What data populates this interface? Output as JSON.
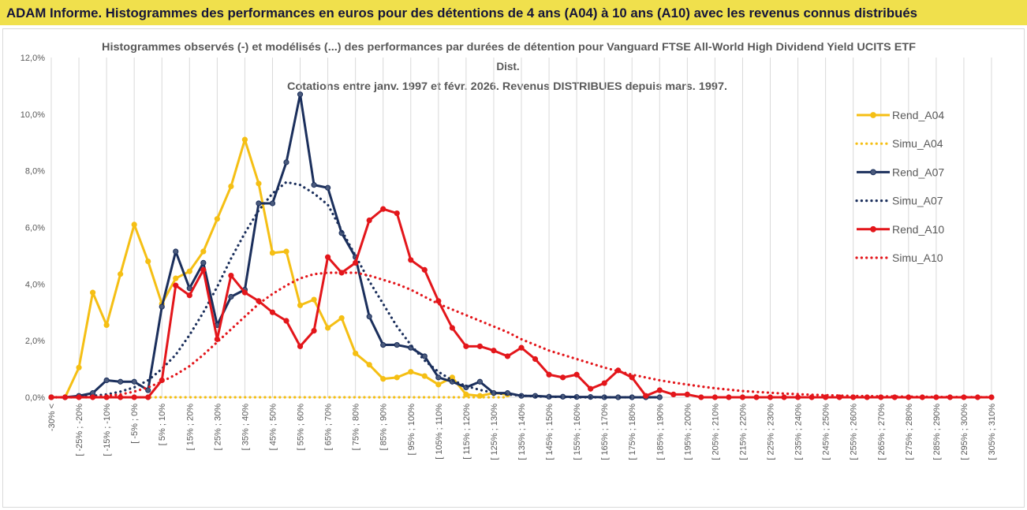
{
  "header": {
    "title": "ADAM Informe. Histogrammes des performances en euros pour des détentions de 4 ans (A04) à 10 ans (A10) avec les revenus connus distribués"
  },
  "colors": {
    "header_bg": "#f0e04c",
    "header_text": "#15153a",
    "grid": "#d9d9d9",
    "text": "#595959"
  },
  "chart_data": {
    "type": "line",
    "title": [
      "Histogrammes observés (-) et modélisés (...) des performances par durées de détention pour Vanguard FTSE All-World High Dividend Yield UCITS ETF",
      "Dist.",
      "Cotations entre janv. 1997 et févr. 2026. Revenus DISTRIBUES depuis mars. 1997."
    ],
    "ylim": [
      0,
      12
    ],
    "y_ticks": [
      0,
      2,
      4,
      6,
      8,
      10,
      12
    ],
    "y_tick_labels": [
      "0,0%",
      "2,0%",
      "4,0%",
      "6,0%",
      "8,0%",
      "10,0%",
      "12,0%"
    ],
    "points_per_tick": 2,
    "x_tick_labels": [
      "-30% <",
      "[ -25% ; -20%",
      "[ -15% ; -10%",
      "[ -5% ; 0%",
      "[ 5% ; 10%",
      "[ 15% ; 20%",
      "[ 25% ; 30%",
      "[ 35% ; 40%",
      "[ 45% ; 50%",
      "[ 55% ; 60%",
      "[ 65% ; 70%",
      "[ 75% ; 80%",
      "[ 85% ; 90%",
      "[ 95% ; 100%",
      "[ 105% ; 110%",
      "[ 115% ; 120%",
      "[ 125% ; 130%",
      "[ 135% ; 140%",
      "[ 145% ; 150%",
      "[ 155% ; 160%",
      "[ 165% ; 170%",
      "[ 175% ; 180%",
      "[ 185% ; 190%",
      "[ 195% ; 200%",
      "[ 205% ; 210%",
      "[ 215% ; 220%",
      "[ 225% ; 230%",
      "[ 235% ; 240%",
      "[ 245% ; 250%",
      "[ 255% ; 260%",
      "[ 265% ; 270%",
      "[ 275% ; 280%",
      "[ 285% ; 290%",
      "[ 295% ; 300%",
      "[ 305% ; 310%"
    ],
    "legend_position": "right",
    "series": [
      {
        "name": "Rend_A04",
        "style": "solid",
        "markers": true,
        "color": "#f5bf14",
        "values": [
          0,
          0,
          1.05,
          3.7,
          2.55,
          4.35,
          6.1,
          4.8,
          3.3,
          4.2,
          4.45,
          5.15,
          6.3,
          7.45,
          9.1,
          7.55,
          5.1,
          5.15,
          3.25,
          3.45,
          2.45,
          2.8,
          1.55,
          1.15,
          0.65,
          0.7,
          0.9,
          0.75,
          0.45,
          0.7,
          0.1,
          0.05,
          0.15,
          0.1,
          null,
          null,
          null,
          null,
          null,
          null,
          null,
          null,
          null,
          null,
          null,
          null,
          null,
          null,
          null,
          null,
          null,
          null,
          null,
          null,
          null,
          null,
          null,
          null,
          null,
          null,
          null,
          null,
          null,
          null,
          null,
          null,
          null,
          null,
          null
        ]
      },
      {
        "name": "Simu_A04",
        "style": "dotted",
        "markers": false,
        "color": "#f5bf14",
        "values": [
          0,
          0,
          0,
          0,
          0,
          0,
          0,
          0,
          0,
          0,
          0,
          0,
          0,
          0,
          0,
          0,
          0,
          0,
          0,
          0,
          0,
          0,
          0,
          0,
          0,
          0,
          0,
          0,
          0,
          0,
          0,
          0,
          0,
          0,
          null,
          null,
          null,
          null,
          null,
          null,
          null,
          null,
          null,
          null,
          null,
          null,
          null,
          null,
          null,
          null,
          null,
          null,
          null,
          null,
          null,
          null,
          null,
          null,
          null,
          null,
          null,
          null,
          null,
          null,
          null,
          null,
          null,
          null,
          null
        ]
      },
      {
        "name": "Rend_A07",
        "style": "solid",
        "markers": true,
        "color": "#1b2f5c",
        "marker_fill": "#4a5a7c",
        "values": [
          0,
          0,
          0.05,
          0.15,
          0.6,
          0.55,
          0.55,
          0.25,
          3.2,
          5.15,
          3.85,
          4.75,
          2.55,
          3.55,
          3.8,
          6.85,
          6.85,
          8.3,
          10.7,
          7.5,
          7.4,
          5.8,
          4.95,
          2.85,
          1.85,
          1.85,
          1.75,
          1.45,
          0.7,
          0.55,
          0.35,
          0.55,
          0.15,
          0.15,
          0.05,
          0.05,
          0.02,
          0.02,
          0.01,
          0.01,
          0,
          0,
          0,
          0,
          0,
          null,
          null,
          null,
          null,
          null,
          null,
          null,
          null,
          null,
          null,
          null,
          null,
          null,
          null,
          null,
          null,
          null,
          null,
          null,
          null,
          null,
          null,
          null,
          null
        ]
      },
      {
        "name": "Simu_A07",
        "style": "dotted",
        "markers": false,
        "color": "#1b2f5c",
        "values": [
          0,
          0,
          0.02,
          0.05,
          0.1,
          0.2,
          0.35,
          0.6,
          1.0,
          1.5,
          2.2,
          3.0,
          3.9,
          4.9,
          5.8,
          6.6,
          7.2,
          7.6,
          7.5,
          7.2,
          6.8,
          5.9,
          5.0,
          4.1,
          3.3,
          2.5,
          1.85,
          1.3,
          0.9,
          0.6,
          0.4,
          0.26,
          0.16,
          0.1,
          0.06,
          0.03,
          0.02,
          0.01,
          0,
          0,
          0,
          0,
          0,
          0,
          0,
          null,
          null,
          null,
          null,
          null,
          null,
          null,
          null,
          null,
          null,
          null,
          null,
          null,
          null,
          null,
          null,
          null,
          null,
          null,
          null,
          null,
          null,
          null,
          null
        ]
      },
      {
        "name": "Rend_A10",
        "style": "solid",
        "markers": true,
        "color": "#e3161b",
        "values": [
          0,
          0,
          0,
          0,
          0,
          0,
          0,
          0,
          0.6,
          3.95,
          3.6,
          4.5,
          2.05,
          4.3,
          3.7,
          3.4,
          3.0,
          2.7,
          1.8,
          2.35,
          4.95,
          4.4,
          4.75,
          6.25,
          6.65,
          6.5,
          4.85,
          4.5,
          3.4,
          2.45,
          1.8,
          1.8,
          1.65,
          1.45,
          1.75,
          1.35,
          0.8,
          0.7,
          0.8,
          0.3,
          0.5,
          0.95,
          0.7,
          0.05,
          0.25,
          0.1,
          0.1,
          0,
          0,
          0,
          0,
          0,
          0,
          0,
          0,
          0,
          0,
          0,
          0,
          0,
          0,
          0,
          0,
          0,
          0,
          0,
          0,
          0,
          0
        ]
      },
      {
        "name": "Simu_A10",
        "style": "dotted",
        "markers": false,
        "color": "#e3161b",
        "values": [
          0,
          0,
          0,
          0,
          0.05,
          0.1,
          0.2,
          0.35,
          0.55,
          0.8,
          1.1,
          1.5,
          1.95,
          2.4,
          2.85,
          3.3,
          3.65,
          3.95,
          4.2,
          4.35,
          4.4,
          4.4,
          4.4,
          4.3,
          4.15,
          4.0,
          3.8,
          3.55,
          3.3,
          3.1,
          2.9,
          2.7,
          2.5,
          2.3,
          2.05,
          1.85,
          1.65,
          1.5,
          1.35,
          1.2,
          1.05,
          0.92,
          0.8,
          0.7,
          0.6,
          0.52,
          0.45,
          0.38,
          0.32,
          0.27,
          0.22,
          0.19,
          0.16,
          0.13,
          0.11,
          0.09,
          0.075,
          0.06,
          0.05,
          0.04,
          0.035,
          0.03,
          0.022,
          0.018,
          0.014,
          0.011,
          0.008,
          0.006,
          0.004
        ]
      }
    ]
  }
}
